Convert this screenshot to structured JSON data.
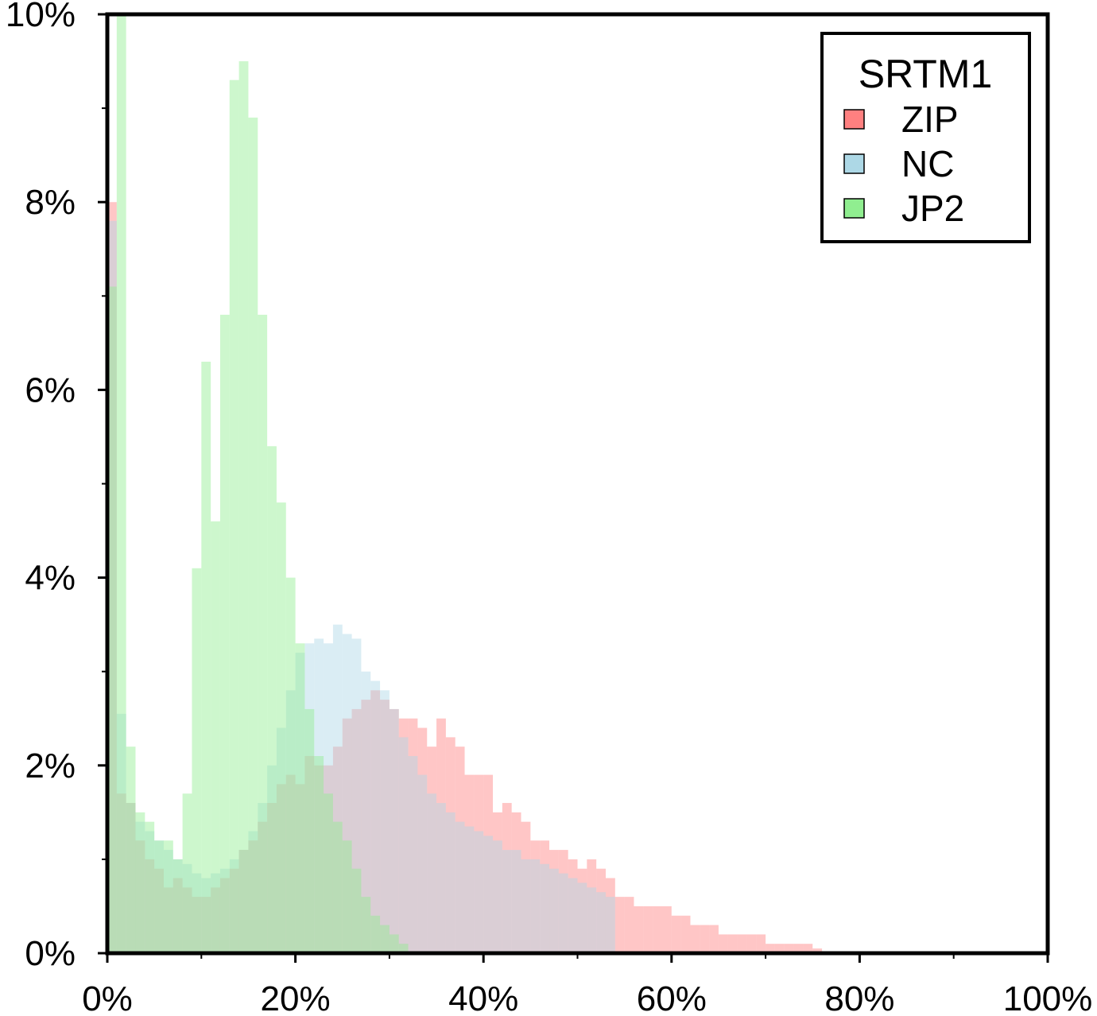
{
  "chart_data": {
    "type": "bar",
    "title": "",
    "xlabel": "",
    "ylabel": "",
    "xlim": [
      0,
      100
    ],
    "ylim": [
      0,
      10
    ],
    "bin_width": 1,
    "grid": false,
    "x_ticks": [
      "0%",
      "20%",
      "40%",
      "60%",
      "80%",
      "100%"
    ],
    "y_ticks": [
      "0%",
      "2%",
      "4%",
      "6%",
      "8%",
      "10%"
    ],
    "legend": {
      "title": "SRTM1",
      "placement": "top-right",
      "entries": [
        "ZIP",
        "NC",
        "JP2"
      ]
    },
    "series": [
      {
        "name": "ZIP",
        "color": "#ff8080",
        "bin_start": 0,
        "values": [
          8.0,
          1.7,
          1.6,
          1.2,
          1.0,
          0.9,
          0.7,
          0.8,
          0.7,
          0.6,
          0.6,
          0.7,
          0.8,
          0.9,
          1.1,
          1.2,
          1.4,
          1.6,
          1.8,
          1.9,
          1.8,
          2.1,
          2.0,
          2.0,
          2.2,
          2.5,
          2.6,
          2.7,
          2.8,
          2.7,
          2.6,
          2.5,
          2.5,
          2.4,
          2.2,
          2.5,
          2.3,
          2.2,
          1.9,
          1.9,
          1.9,
          1.5,
          1.6,
          1.5,
          1.4,
          1.2,
          1.2,
          1.1,
          1.1,
          1.0,
          0.9,
          1.0,
          0.9,
          0.8,
          0.6,
          0.6,
          0.5,
          0.5,
          0.5,
          0.5,
          0.4,
          0.4,
          0.3,
          0.3,
          0.3,
          0.2,
          0.2,
          0.2,
          0.2,
          0.2,
          0.1,
          0.1,
          0.1,
          0.1,
          0.1,
          0.05
        ]
      },
      {
        "name": "NC",
        "color": "#add8e6",
        "bin_start": 0,
        "values": [
          7.8,
          2.55,
          1.6,
          1.4,
          1.3,
          1.2,
          1.1,
          1.0,
          0.95,
          0.85,
          0.8,
          0.85,
          0.9,
          1.0,
          1.1,
          1.3,
          1.6,
          2.0,
          2.4,
          2.8,
          3.2,
          3.3,
          3.35,
          3.3,
          3.5,
          3.4,
          3.35,
          3.0,
          2.9,
          2.8,
          2.6,
          2.3,
          2.1,
          1.9,
          1.7,
          1.6,
          1.5,
          1.4,
          1.35,
          1.3,
          1.25,
          1.2,
          1.1,
          1.1,
          1.0,
          1.0,
          0.95,
          0.9,
          0.85,
          0.8,
          0.75,
          0.7,
          0.65,
          0.6
        ]
      },
      {
        "name": "JP2",
        "color": "#90ee90",
        "bin_start": 0,
        "values": [
          7.1,
          10.0,
          2.2,
          1.5,
          1.4,
          1.2,
          1.2,
          1.0,
          1.7,
          4.1,
          6.3,
          4.6,
          6.8,
          9.3,
          9.5,
          8.9,
          6.8,
          5.4,
          4.8,
          4.0,
          3.3,
          2.6,
          2.1,
          1.7,
          1.4,
          1.2,
          0.9,
          0.6,
          0.4,
          0.3,
          0.2,
          0.1
        ]
      }
    ]
  }
}
